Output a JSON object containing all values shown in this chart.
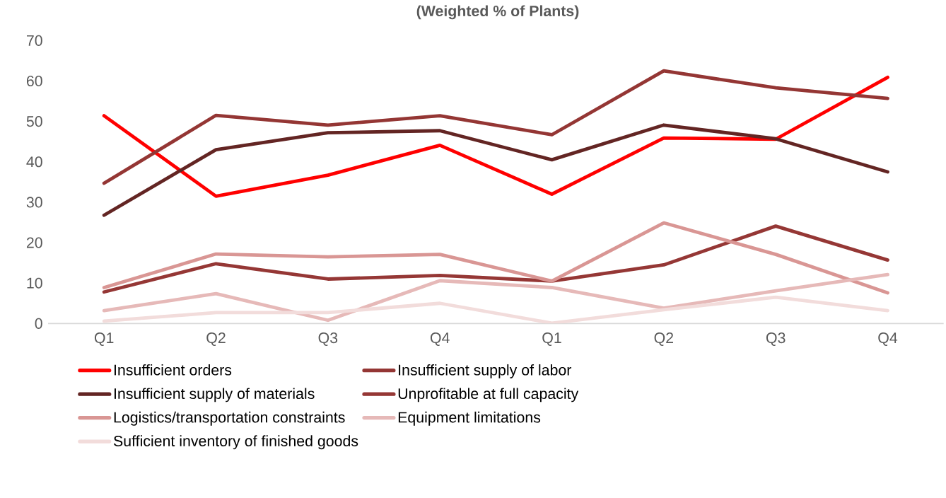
{
  "chart_data": {
    "type": "line",
    "title": "(Weighted % of Plants)",
    "categories": [
      "Q1",
      "Q2",
      "Q3",
      "Q4",
      "Q1",
      "Q2",
      "Q3",
      "Q4"
    ],
    "ylim": [
      0,
      70
    ],
    "yticks": [
      0,
      10,
      20,
      30,
      40,
      50,
      60,
      70
    ],
    "grid": false,
    "legend": "bottom",
    "series": [
      {
        "name": "Insufficient orders",
        "color": "#ff0000",
        "values": [
          51.4,
          31.5,
          36.7,
          44.1,
          32,
          45.9,
          45.6,
          60.9
        ]
      },
      {
        "name": "Insufficient supply of labor",
        "color": "#943634",
        "values": [
          34.7,
          51.5,
          49.1,
          51.4,
          46.7,
          62.5,
          58.3,
          55.7
        ]
      },
      {
        "name": "Insufficient supply of materials",
        "color": "#632523",
        "values": [
          26.8,
          43,
          47.2,
          47.7,
          40.5,
          49.1,
          45.7,
          37.5
        ]
      },
      {
        "name": "Unprofitable at full capacity",
        "color": "#953735",
        "values": [
          7.8,
          14.8,
          11,
          11.9,
          10.5,
          14.5,
          24.1,
          15.7
        ]
      },
      {
        "name": "Logistics/transportation constraints",
        "color": "#d99694",
        "values": [
          8.9,
          17.2,
          16.5,
          17.1,
          10.5,
          24.9,
          17.1,
          7.6
        ]
      },
      {
        "name": "Equipment limitations",
        "color": "#e6b9b8",
        "values": [
          3.2,
          7.4,
          0.8,
          10.6,
          8.9,
          3.8,
          8.1,
          12.1
        ]
      },
      {
        "name": "Sufficient inventory of finished goods",
        "color": "#f2dcdb",
        "values": [
          0.6,
          2.7,
          2.7,
          5.0,
          0.1,
          3.4,
          6.5,
          3.2
        ]
      }
    ]
  }
}
